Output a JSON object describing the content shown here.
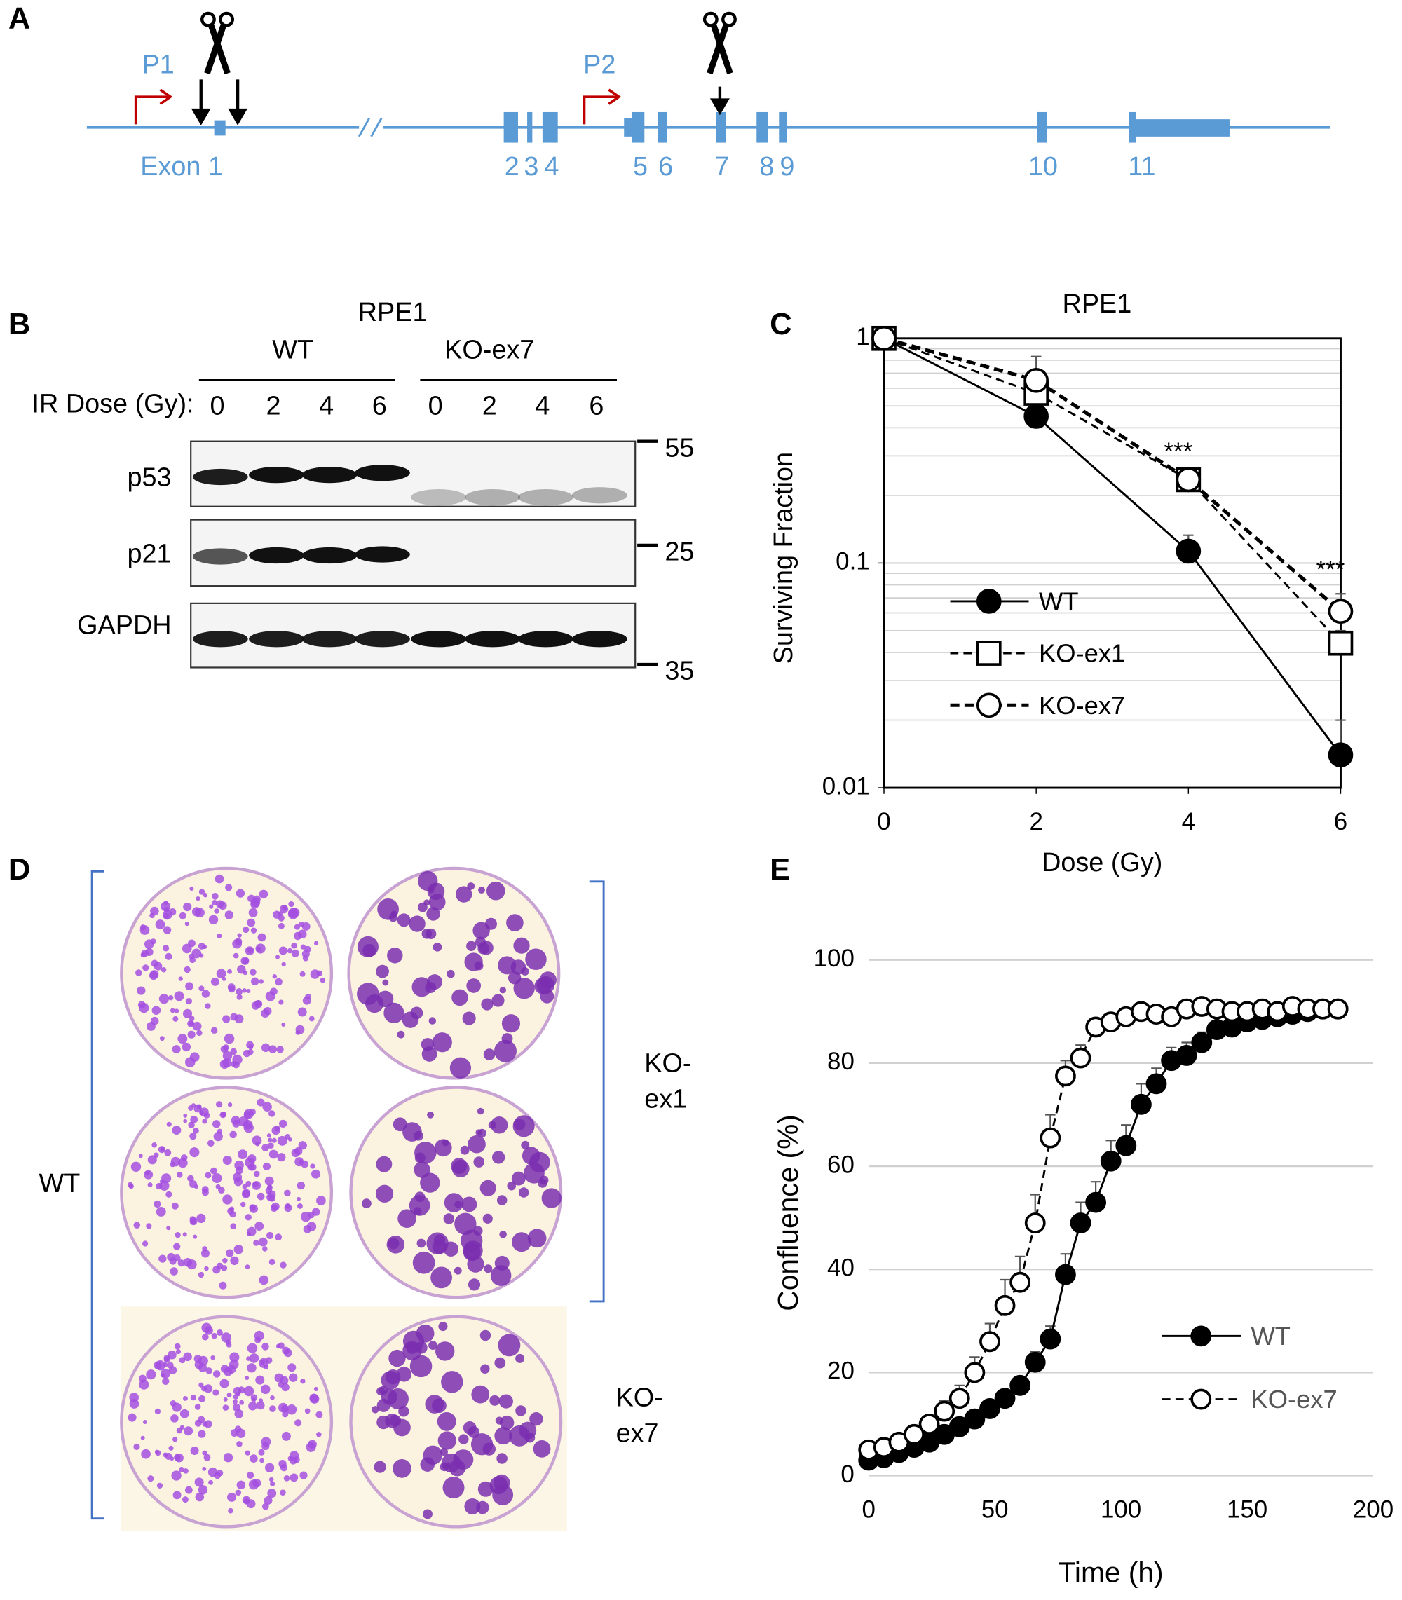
{
  "panel_a": {
    "letter": "A",
    "promoters": [
      "P1",
      "P2"
    ],
    "exon_labels": [
      "Exon 1",
      "2",
      "3",
      "4",
      "5",
      "6",
      "7",
      "8",
      "9",
      "10",
      "11"
    ]
  },
  "panel_b": {
    "letter": "B",
    "title": "RPE1",
    "groups": [
      "WT",
      "KO-ex7"
    ],
    "dose_label": "IR Dose (Gy):",
    "doses": [
      0,
      2,
      4,
      6,
      0,
      2,
      4,
      6
    ],
    "rows": [
      "p53",
      "p21",
      "GAPDH"
    ],
    "markers": [
      55,
      25,
      35
    ]
  },
  "panel_d": {
    "letter": "D",
    "labels": [
      "WT",
      "KO-",
      "ex1",
      "KO-",
      "ex7"
    ]
  },
  "chart_data": [
    {
      "type": "line",
      "panel": "C",
      "title": "RPE1",
      "x_label": "Dose (Gy)",
      "y_label": "Surviving Fraction",
      "log_y": true,
      "grid": true,
      "frame": true,
      "legend": "left",
      "x": [
        0,
        2,
        4,
        6
      ],
      "xlim": [
        0,
        6
      ],
      "xticks": [
        0,
        2,
        4,
        6
      ],
      "ylim": [
        0.01,
        1
      ],
      "yticks": [
        0.01,
        0.1,
        1
      ],
      "series": [
        {
          "name": "WT",
          "color": "#000000",
          "line_style": "solid",
          "marker": "circle",
          "filled": true,
          "values": [
            1,
            0.45,
            0.113,
            0.014
          ],
          "errors": [
            0,
            0.02,
            0.02,
            0.006
          ]
        },
        {
          "name": "KO-ex1",
          "color": "#000000",
          "line_style": "dashed",
          "marker": "square",
          "filled": false,
          "values": [
            1,
            0.57,
            0.235,
            0.044
          ],
          "errors": [
            0,
            0.05,
            0.01,
            0.006
          ]
        },
        {
          "name": "KO-ex7",
          "color": "#000000",
          "line_style": "dashed-bold",
          "marker": "circle",
          "filled": false,
          "values": [
            1,
            0.65,
            0.235,
            0.061
          ],
          "errors": [
            0,
            0.18,
            0.01,
            0.012
          ]
        }
      ],
      "annotations": [
        {
          "text": "***",
          "x": 4
        },
        {
          "text": "***",
          "x": 6
        }
      ]
    },
    {
      "type": "line",
      "panel": "E",
      "x_label": "Time (h)",
      "y_label": "Confluence (%)",
      "log_y": false,
      "grid": true,
      "frame": false,
      "legend": "lower right",
      "x": [
        0,
        6,
        12,
        18,
        24,
        30,
        36,
        42,
        48,
        54,
        60,
        66,
        72,
        78,
        84,
        90,
        96,
        102,
        108,
        114,
        120,
        126,
        132,
        138,
        144,
        150,
        156,
        162,
        168,
        174,
        180,
        186
      ],
      "xlim": [
        0,
        200
      ],
      "xticks": [
        0,
        50,
        100,
        150,
        200
      ],
      "ylim": [
        0,
        100
      ],
      "yticks": [
        0,
        20,
        40,
        60,
        80,
        100
      ],
      "series": [
        {
          "name": "WT",
          "color": "#000000",
          "line_style": "solid",
          "marker": "circle",
          "filled": true,
          "values": [
            3,
            3.5,
            4.5,
            5.5,
            6.5,
            8,
            9.5,
            11,
            13,
            15,
            17.5,
            22,
            26.5,
            39,
            49,
            53,
            61,
            64,
            72,
            76,
            80.5,
            81.5,
            84,
            86.5,
            87,
            88,
            88.5,
            89,
            89.5,
            90,
            90.5,
            90.5
          ],
          "errors": [
            0.5,
            0.5,
            0.5,
            0.5,
            0.8,
            1,
            1,
            1,
            1,
            1.5,
            1.5,
            2,
            2.5,
            4,
            4,
            4,
            4,
            4,
            4,
            3,
            2.5,
            2.5,
            2,
            1.5,
            1.5,
            1.5,
            1,
            1,
            1,
            1,
            1,
            1
          ]
        },
        {
          "name": "KO-ex7",
          "color": "#000000",
          "line_style": "dashed",
          "marker": "circle",
          "filled": false,
          "values": [
            5,
            5.5,
            6.5,
            8,
            10,
            12.5,
            15,
            20,
            26,
            33,
            37.5,
            49,
            65.5,
            77.5,
            81,
            87,
            88,
            89,
            90,
            89.5,
            89,
            90.5,
            91,
            90.5,
            90,
            90,
            90.5,
            90,
            91,
            90.5,
            90.5,
            90.5
          ],
          "errors": [
            0.5,
            0.5,
            0.8,
            1,
            1.5,
            2,
            2.5,
            3,
            3.5,
            5,
            5,
            5.5,
            4.5,
            3,
            2.5,
            1.5,
            1.5,
            1.5,
            1,
            1,
            1,
            1,
            1,
            1,
            1,
            1,
            1,
            1,
            1,
            1,
            1,
            1
          ]
        }
      ]
    }
  ]
}
